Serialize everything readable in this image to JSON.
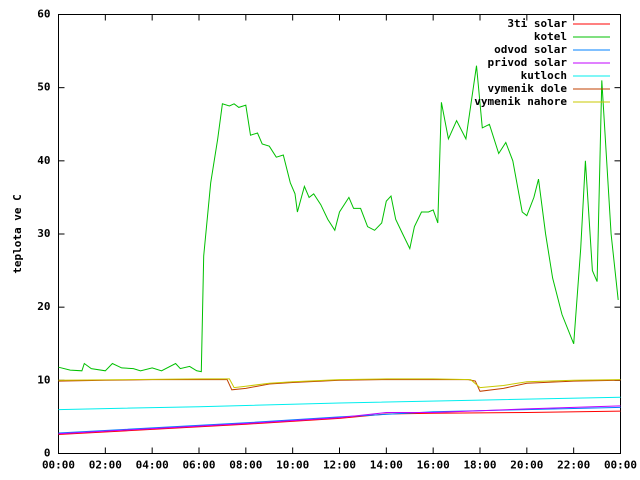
{
  "chart_data": {
    "type": "line",
    "ylabel": "teplota ve C",
    "xlim": [
      0,
      24
    ],
    "ylim": [
      0,
      60
    ],
    "xticks": [
      {
        "value": 0,
        "label": "00:00"
      },
      {
        "value": 2,
        "label": "02:00"
      },
      {
        "value": 4,
        "label": "04:00"
      },
      {
        "value": 6,
        "label": "06:00"
      },
      {
        "value": 8,
        "label": "08:00"
      },
      {
        "value": 10,
        "label": "10:00"
      },
      {
        "value": 12,
        "label": "12:00"
      },
      {
        "value": 14,
        "label": "14:00"
      },
      {
        "value": 16,
        "label": "16:00"
      },
      {
        "value": 18,
        "label": "18:00"
      },
      {
        "value": 20,
        "label": "20:00"
      },
      {
        "value": 22,
        "label": "22:00"
      },
      {
        "value": 24,
        "label": "00:00"
      }
    ],
    "yticks": [
      0,
      10,
      20,
      30,
      40,
      50,
      60
    ],
    "legend": "top-right",
    "series": [
      {
        "name": "3ti solar",
        "color": "#ff0000",
        "x": [
          0,
          4,
          8,
          12,
          14,
          16,
          20,
          24
        ],
        "values": [
          2.6,
          3.3,
          4.0,
          4.8,
          5.4,
          5.5,
          5.6,
          5.8
        ]
      },
      {
        "name": "kotel",
        "color": "#00c000",
        "x": [
          0,
          0.5,
          1,
          1.1,
          1.4,
          2,
          2.3,
          2.7,
          3.2,
          3.5,
          4,
          4.4,
          5,
          5.2,
          5.6,
          5.9,
          6.1,
          6.2,
          6.5,
          6.8,
          7.0,
          7.3,
          7.5,
          7.7,
          8.0,
          8.2,
          8.5,
          8.7,
          9.0,
          9.3,
          9.6,
          9.9,
          10.1,
          10.2,
          10.5,
          10.7,
          10.9,
          11.2,
          11.5,
          11.8,
          12.0,
          12.4,
          12.6,
          12.9,
          13.2,
          13.5,
          13.8,
          14.0,
          14.2,
          14.4,
          14.7,
          15.0,
          15.2,
          15.5,
          15.8,
          16.0,
          16.2,
          16.35,
          16.65,
          17.0,
          17.4,
          17.85,
          18.1,
          18.4,
          18.8,
          19.1,
          19.4,
          19.8,
          20.0,
          20.3,
          20.5,
          20.8,
          21.1,
          21.5,
          22.0,
          22.3,
          22.5,
          22.8,
          23.0,
          23.2,
          23.6,
          23.9
        ],
        "values": [
          11.8,
          11.4,
          11.3,
          12.3,
          11.6,
          11.3,
          12.3,
          11.7,
          11.6,
          11.3,
          11.7,
          11.3,
          12.3,
          11.6,
          11.9,
          11.3,
          11.2,
          27,
          37,
          43,
          47.8,
          47.5,
          47.8,
          47.3,
          47.6,
          43.5,
          43.8,
          42.3,
          42,
          40.5,
          40.8,
          37,
          35.5,
          33,
          36.5,
          35,
          35.5,
          34,
          32,
          30.5,
          33,
          35,
          33.5,
          33.5,
          31,
          30.5,
          31.5,
          34.5,
          35.2,
          32,
          30,
          28,
          31,
          33,
          33,
          33.3,
          31.5,
          48,
          43,
          45.5,
          43,
          53,
          44.5,
          45,
          41,
          42.5,
          40,
          33,
          32.5,
          35,
          37.5,
          30,
          24,
          19,
          15,
          28,
          40,
          25,
          23.5,
          51,
          30,
          21
        ]
      },
      {
        "name": "odvod solar",
        "color": "#0080ff",
        "x": [
          0,
          4,
          8,
          12,
          16,
          20,
          24
        ],
        "values": [
          2.8,
          3.5,
          4.2,
          5.0,
          5.7,
          6.0,
          6.3
        ]
      },
      {
        "name": "privod solar",
        "color": "#c000ff",
        "x": [
          0,
          4,
          8,
          12,
          14,
          16,
          20,
          24
        ],
        "values": [
          2.7,
          3.4,
          4.1,
          4.9,
          5.6,
          5.6,
          6.1,
          6.5
        ]
      },
      {
        "name": "kutloch",
        "color": "#00eeee",
        "x": [
          0,
          6,
          12,
          18,
          24
        ],
        "values": [
          6.0,
          6.4,
          6.9,
          7.3,
          7.7
        ]
      },
      {
        "name": "vymenik dole",
        "color": "#c04000",
        "x": [
          0,
          2,
          4,
          6,
          7.2,
          7.4,
          8,
          9,
          10,
          12,
          14,
          16,
          17.5,
          17.8,
          18,
          19,
          20,
          22,
          24
        ],
        "values": [
          9.9,
          10,
          10.1,
          10.1,
          10.1,
          8.7,
          8.9,
          9.5,
          9.7,
          10,
          10.1,
          10.1,
          10.1,
          9.9,
          8.5,
          8.9,
          9.6,
          9.9,
          10
        ]
      },
      {
        "name": "vymenik nahore",
        "color": "#c8c800",
        "x": [
          0,
          6,
          7.3,
          7.5,
          8,
          9,
          10,
          12,
          14,
          16,
          17.6,
          18,
          19,
          20,
          22,
          24
        ],
        "values": [
          10,
          10.2,
          10.2,
          9.0,
          9.2,
          9.6,
          9.8,
          10.1,
          10.2,
          10.2,
          10.1,
          9.0,
          9.3,
          9.8,
          10,
          10.1
        ]
      }
    ]
  }
}
